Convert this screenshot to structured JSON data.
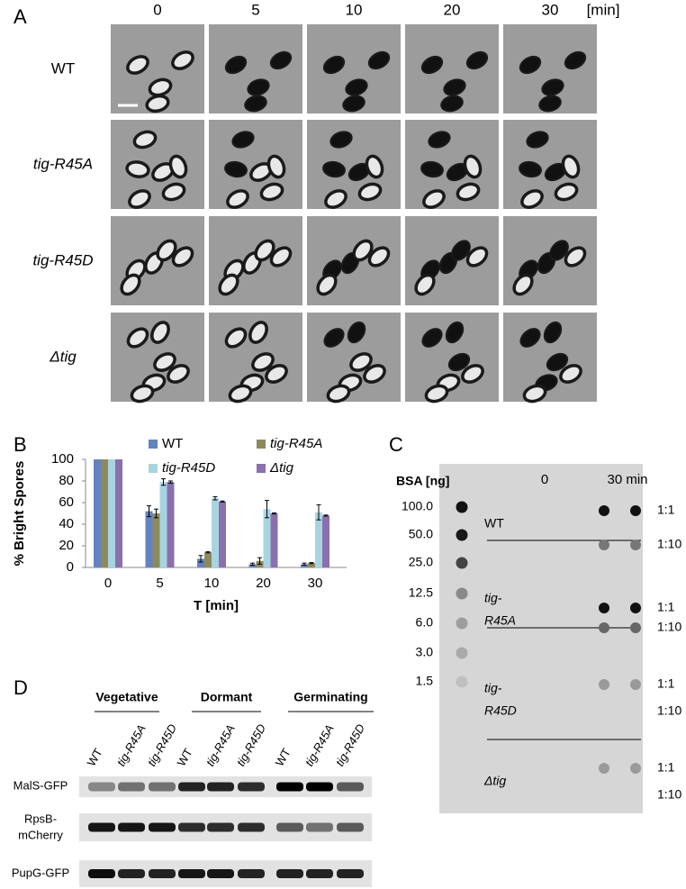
{
  "panel_labels": [
    "A",
    "B",
    "C",
    "D"
  ],
  "panel_a": {
    "times": [
      "0",
      "5",
      "10",
      "20",
      "30"
    ],
    "unit": "[min]",
    "strains": [
      "WT",
      "tig-R45A",
      "tig-R45D",
      "Δtig"
    ]
  },
  "chart_data": {
    "type": "bar",
    "categories": [
      "0",
      "5",
      "10",
      "20",
      "30"
    ],
    "series": [
      {
        "name": "WT",
        "color": "#6383c0",
        "values": [
          100,
          52,
          8,
          3,
          3
        ],
        "errors": [
          0,
          5,
          3,
          1,
          1
        ]
      },
      {
        "name": "tig-R45A",
        "color": "#8c8a5c",
        "values": [
          100,
          50,
          14,
          6,
          4
        ],
        "errors": [
          0,
          4,
          0.5,
          3,
          0.5
        ]
      },
      {
        "name": "tig-R45D",
        "color": "#a8d4e2",
        "values": [
          100,
          79,
          64,
          54,
          51
        ],
        "errors": [
          0,
          3,
          1.5,
          8,
          7
        ]
      },
      {
        "name": "Δtig",
        "color": "#8a70ad",
        "values": [
          100,
          79,
          61,
          50,
          48
        ],
        "errors": [
          0,
          1,
          0.5,
          0.5,
          0.5
        ]
      }
    ],
    "ylim": [
      0,
      100
    ],
    "yticks": [
      0,
      20,
      40,
      60,
      80,
      100
    ],
    "ylabel": "% Bright Spores",
    "xlabel": "T [min]"
  },
  "panel_c": {
    "bsa_label": "BSA [ng]",
    "bsa_amounts": [
      "100.0",
      "50.0",
      "25.0",
      "12.5",
      "6.0",
      "3.0",
      "1.5"
    ],
    "times": [
      "0",
      "30 min"
    ],
    "strains": [
      [
        "WT"
      ],
      [
        "tig-",
        "R45A"
      ],
      [
        "tig-",
        "R45D"
      ],
      [
        "Δtig"
      ]
    ],
    "dilutions": [
      "1:1",
      "1:10",
      "1:1",
      "1:10",
      "1:1",
      "1:10",
      "1:1",
      "1:10"
    ]
  },
  "panel_d": {
    "groups": [
      "Vegetative",
      "Dormant",
      "Germinating"
    ],
    "lanes": [
      "WT",
      "tig-R45A",
      "tig-R45D",
      "WT",
      "tig-R45A",
      "tig-R45D",
      "WT",
      "tig-R45A",
      "tig-R45D"
    ],
    "proteins": [
      [
        "MalS-GFP"
      ],
      [
        "RpsB-",
        "mCherry"
      ],
      [
        "PupG-GFP"
      ]
    ]
  }
}
